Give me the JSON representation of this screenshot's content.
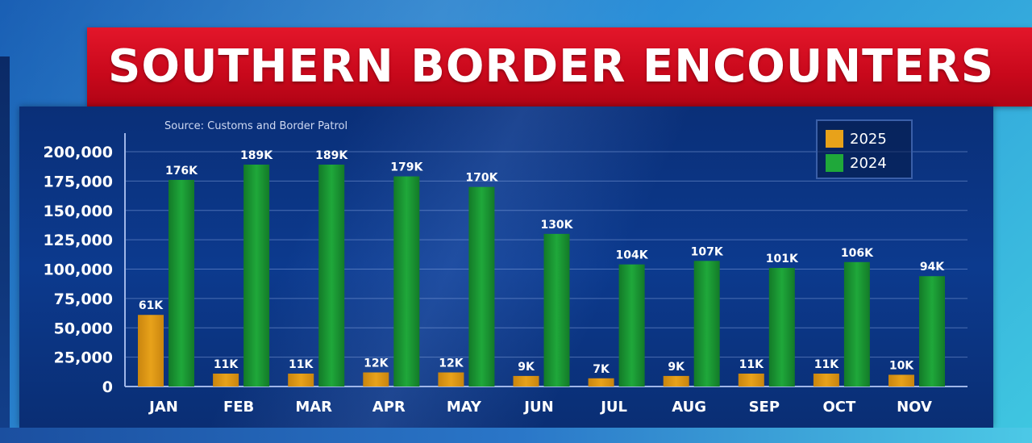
{
  "title": "SOUTHERN BORDER ENCOUNTERS",
  "source": "Source: Customs and Border Patrol",
  "colors": {
    "series_2025": "#e8a21a",
    "series_2024": "#1fa83a",
    "banner": "#d8101f",
    "panel": "#0c3a8e"
  },
  "chart_data": {
    "type": "bar",
    "categories": [
      "JAN",
      "FEB",
      "MAR",
      "APR",
      "MAY",
      "JUN",
      "JUL",
      "AUG",
      "SEP",
      "OCT",
      "NOV"
    ],
    "series": [
      {
        "name": "2025",
        "values": [
          61000,
          11000,
          11000,
          12000,
          12000,
          9000,
          7000,
          9000,
          11000,
          11000,
          10000
        ],
        "labels": [
          "61K",
          "11K",
          "11K",
          "12K",
          "12K",
          "9K",
          "7K",
          "9K",
          "11K",
          "11K",
          "10K"
        ]
      },
      {
        "name": "2024",
        "values": [
          176000,
          189000,
          189000,
          179000,
          170000,
          130000,
          104000,
          107000,
          101000,
          106000,
          94000
        ],
        "labels": [
          "176K",
          "189K",
          "189K",
          "179K",
          "170K",
          "130K",
          "104K",
          "107K",
          "101K",
          "106K",
          "94K"
        ]
      }
    ],
    "yticks": [
      "0",
      "25,000",
      "50,000",
      "75,000",
      "100,000",
      "125,000",
      "150,000",
      "175,000",
      "200,000"
    ],
    "ylim": [
      0,
      200000
    ],
    "grid": true,
    "legend": "top-right"
  }
}
